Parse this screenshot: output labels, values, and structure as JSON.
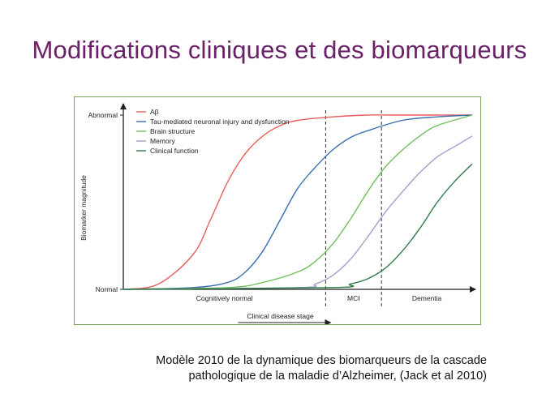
{
  "slide": {
    "title": "Modifications cliniques et des biomarqueurs",
    "caption_line1": "Modèle 2010 de la dynamique des biomarqueurs de la cascade",
    "caption_line2": "pathologique de la maladie d’Alzheimer, (Jack et al 2010)"
  },
  "chart_data": {
    "type": "line",
    "title": "",
    "ylabel": "Biomarker magnitude",
    "xlabel": "Clinical disease stage",
    "y_ticks": [
      "Abnormal",
      "Normal"
    ],
    "ylim": [
      0,
      1
    ],
    "xlim": [
      0,
      100
    ],
    "stages": [
      {
        "label": "Cognitively normal",
        "from": 0,
        "to": 58
      },
      {
        "label": "MCI",
        "from": 58,
        "to": 74
      },
      {
        "label": "Dementia",
        "from": 74,
        "to": 100
      }
    ],
    "stage_dividers": [
      58,
      74
    ],
    "legend_position": "top-left",
    "grid": false,
    "series": [
      {
        "name": "Aβ",
        "color": "#e8605a",
        "x": [
          0,
          10,
          20,
          25,
          30,
          35,
          40,
          45,
          50,
          60,
          70,
          80,
          100
        ],
        "y": [
          0,
          0.03,
          0.2,
          0.4,
          0.62,
          0.78,
          0.88,
          0.94,
          0.97,
          0.99,
          1.0,
          1.0,
          1.0
        ]
      },
      {
        "name": "Tau-mediated neuronal injury and dysfunction",
        "color": "#3b6fb0",
        "x": [
          0,
          20,
          30,
          35,
          40,
          45,
          50,
          55,
          60,
          65,
          70,
          80,
          90,
          100
        ],
        "y": [
          0,
          0.01,
          0.04,
          0.1,
          0.22,
          0.4,
          0.58,
          0.7,
          0.8,
          0.87,
          0.91,
          0.97,
          0.99,
          1.0
        ]
      },
      {
        "name": "Brain structure",
        "color": "#6fbf5a",
        "x": [
          0,
          30,
          40,
          50,
          55,
          60,
          65,
          70,
          75,
          80,
          85,
          90,
          100
        ],
        "y": [
          0,
          0.01,
          0.04,
          0.1,
          0.16,
          0.26,
          0.4,
          0.56,
          0.7,
          0.8,
          0.88,
          0.94,
          1.0
        ]
      },
      {
        "name": "Memory",
        "color": "#a89bcc",
        "x": [
          0,
          50,
          55,
          60,
          65,
          70,
          75,
          80,
          85,
          90,
          95,
          100
        ],
        "y": [
          0,
          0.01,
          0.03,
          0.08,
          0.17,
          0.3,
          0.44,
          0.56,
          0.67,
          0.76,
          0.82,
          0.88
        ]
      },
      {
        "name": "Clinical function",
        "color": "#2f7a4a",
        "x": [
          0,
          60,
          65,
          70,
          75,
          80,
          85,
          90,
          95,
          100
        ],
        "y": [
          0,
          0.01,
          0.03,
          0.06,
          0.12,
          0.22,
          0.35,
          0.5,
          0.62,
          0.72
        ]
      }
    ]
  }
}
